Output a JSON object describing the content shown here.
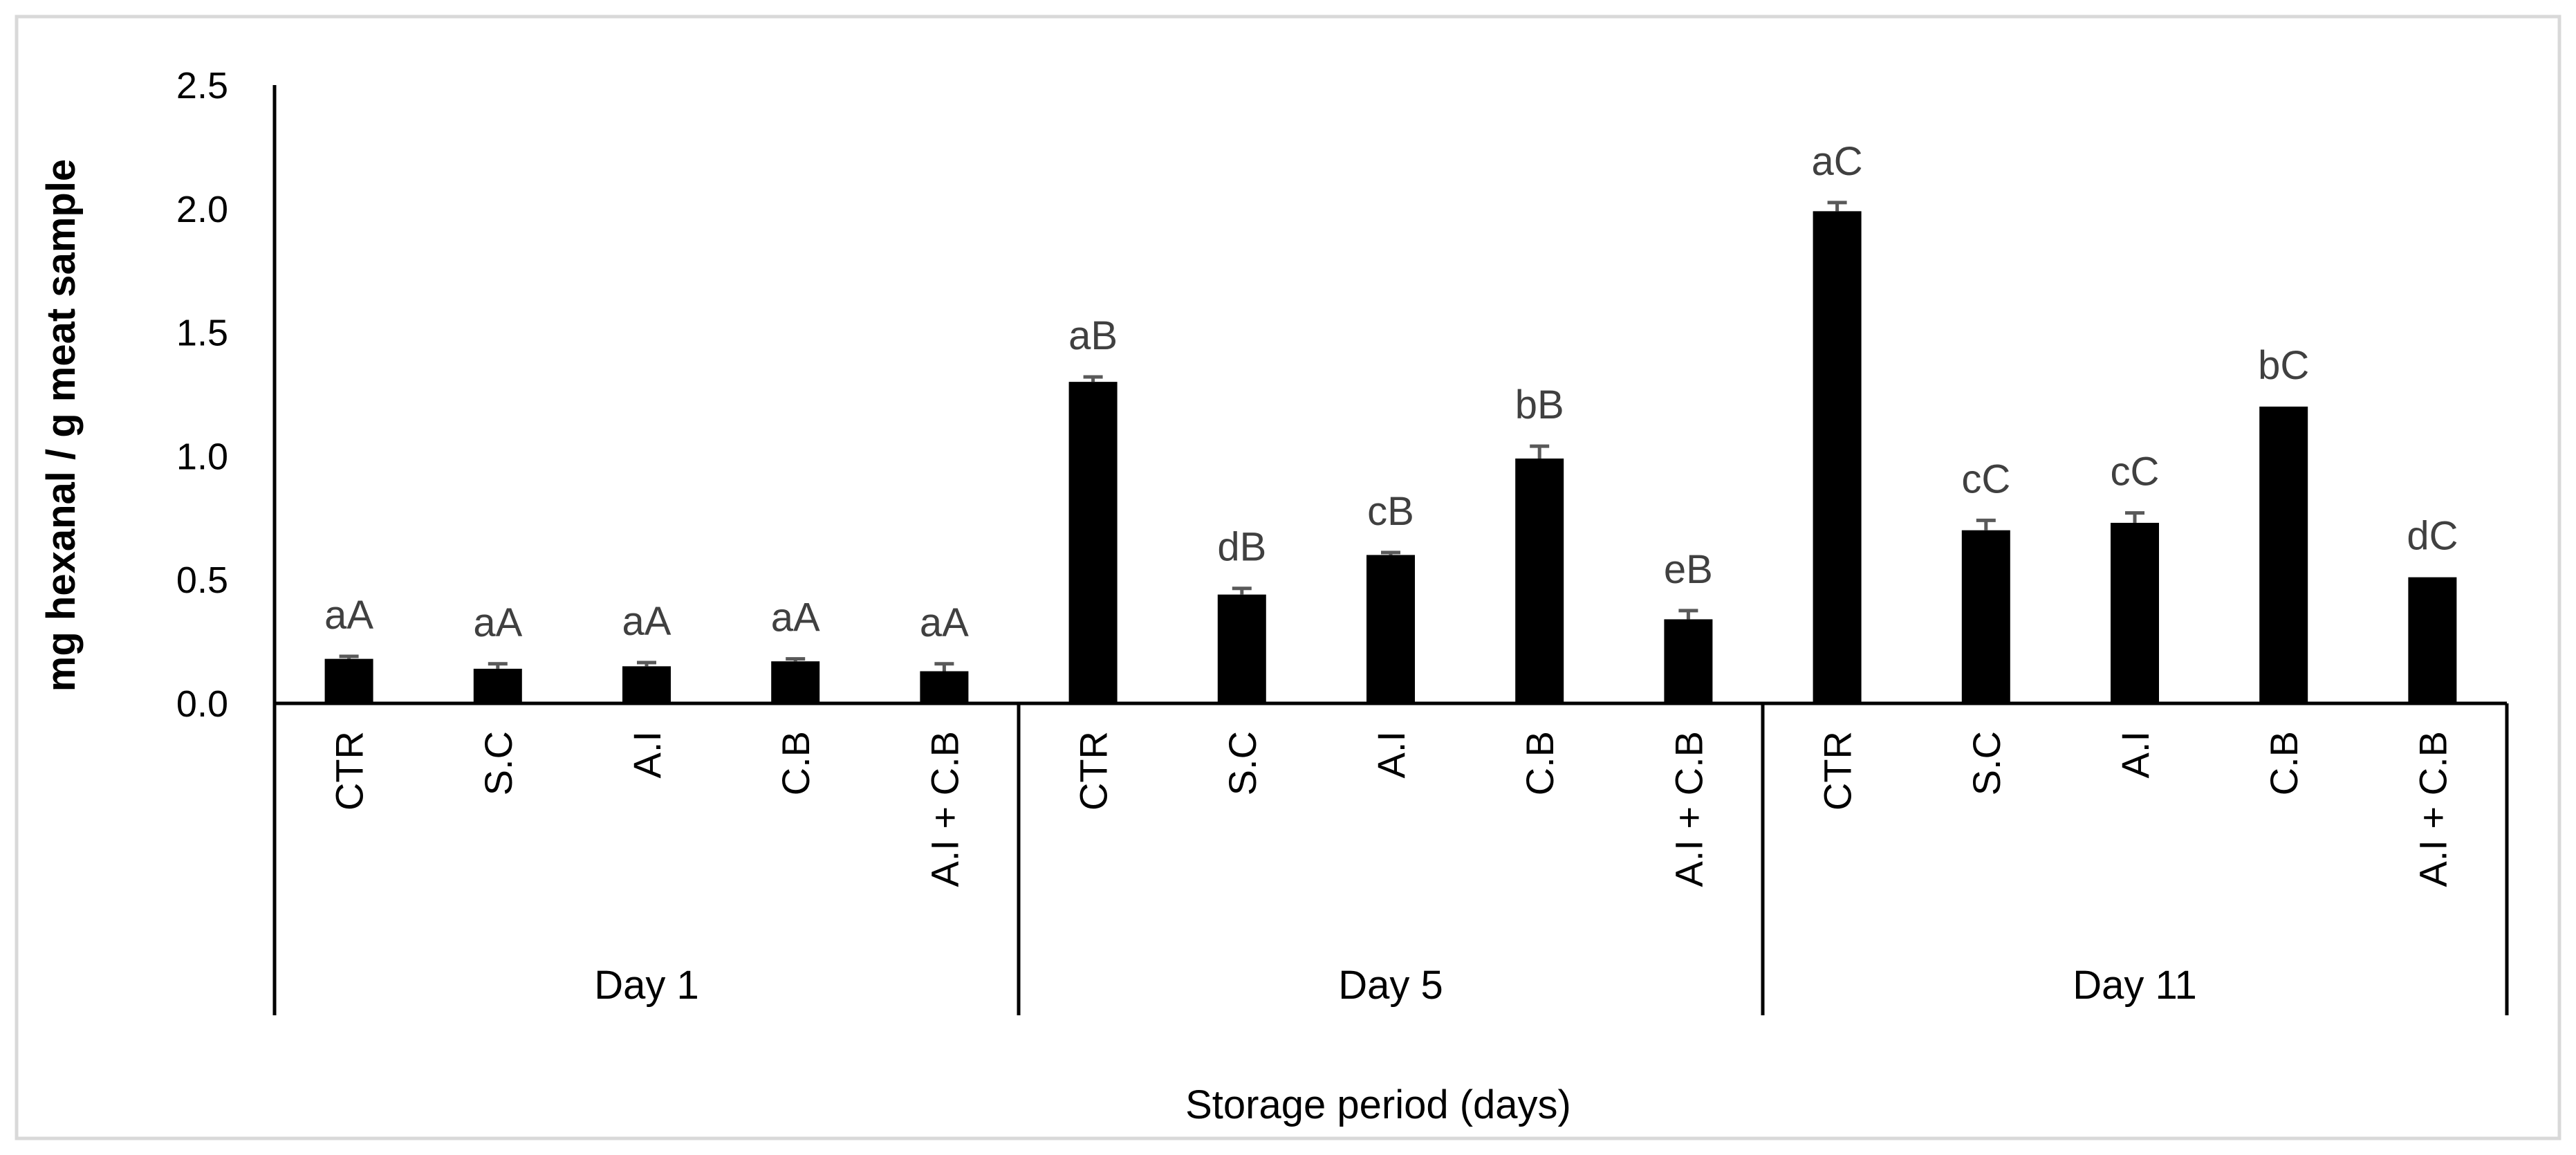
{
  "chart_data": {
    "type": "bar",
    "xlabel": "Storage period (days)",
    "ylabel": "mg hexanal / g meat sample",
    "ylim": [
      0,
      2.5
    ],
    "yticks": [
      "0.0",
      "0.5",
      "1.0",
      "1.5",
      "2.0",
      "2.5"
    ],
    "groups": [
      {
        "label": "Day 1",
        "bars": [
          {
            "category": "CTR",
            "value": 0.18,
            "error": 0.01,
            "letters": "aA"
          },
          {
            "category": "S.C",
            "value": 0.14,
            "error": 0.02,
            "letters": "aA"
          },
          {
            "category": "A.I",
            "value": 0.15,
            "error": 0.015,
            "letters": "aA"
          },
          {
            "category": "C.B",
            "value": 0.17,
            "error": 0.01,
            "letters": "aA"
          },
          {
            "category": "A.I + C.B",
            "value": 0.13,
            "error": 0.03,
            "letters": "aA"
          }
        ]
      },
      {
        "label": "Day 5",
        "bars": [
          {
            "category": "CTR",
            "value": 1.3,
            "error": 0.02,
            "letters": "aB"
          },
          {
            "category": "S.C",
            "value": 0.44,
            "error": 0.025,
            "letters": "dB"
          },
          {
            "category": "A.I",
            "value": 0.6,
            "error": 0.01,
            "letters": "cB"
          },
          {
            "category": "C.B",
            "value": 0.99,
            "error": 0.05,
            "letters": "bB"
          },
          {
            "category": "A.I + C.B",
            "value": 0.34,
            "error": 0.035,
            "letters": "eB"
          }
        ]
      },
      {
        "label": "Day 11",
        "bars": [
          {
            "category": "CTR",
            "value": 1.99,
            "error": 0.035,
            "letters": "aC"
          },
          {
            "category": "S.C",
            "value": 0.7,
            "error": 0.04,
            "letters": "cC"
          },
          {
            "category": "A.I",
            "value": 0.73,
            "error": 0.04,
            "letters": "cC"
          },
          {
            "category": "C.B",
            "value": 1.2,
            "error": 0.0,
            "letters": "bC"
          },
          {
            "category": "A.I + C.B",
            "value": 0.51,
            "error": 0.0,
            "letters": "dC"
          }
        ]
      }
    ],
    "colors": {
      "bar": "#000000",
      "error_bar": "#595959",
      "data_label": "#404040",
      "frame": "#d9d9d9"
    }
  }
}
